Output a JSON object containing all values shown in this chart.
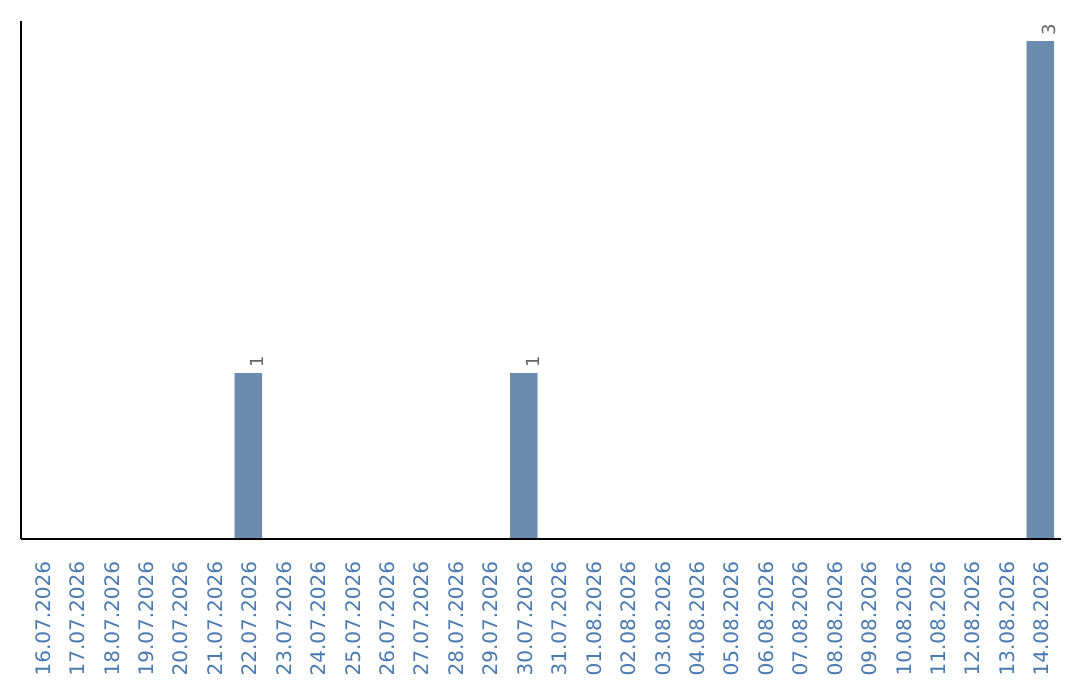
{
  "chart_data": {
    "type": "bar",
    "categories": [
      "16.07.2026",
      "17.07.2026",
      "18.07.2026",
      "19.07.2026",
      "20.07.2026",
      "21.07.2026",
      "22.07.2026",
      "23.07.2026",
      "24.07.2026",
      "25.07.2026",
      "26.07.2026",
      "27.07.2026",
      "28.07.2026",
      "29.07.2026",
      "30.07.2026",
      "31.07.2026",
      "01.08.2026",
      "02.08.2026",
      "03.08.2026",
      "04.08.2026",
      "05.08.2026",
      "06.08.2026",
      "07.08.2026",
      "08.08.2026",
      "09.08.2026",
      "10.08.2026",
      "11.08.2026",
      "12.08.2026",
      "13.08.2026",
      "14.08.2026"
    ],
    "values": [
      0,
      0,
      0,
      0,
      0,
      0,
      1,
      0,
      0,
      0,
      0,
      0,
      0,
      0,
      1,
      0,
      0,
      0,
      0,
      0,
      0,
      0,
      0,
      0,
      0,
      0,
      0,
      0,
      0,
      3
    ],
    "value_labels": [
      null,
      null,
      null,
      null,
      null,
      null,
      "1",
      null,
      null,
      null,
      null,
      null,
      null,
      null,
      "1",
      null,
      null,
      null,
      null,
      null,
      null,
      null,
      null,
      null,
      null,
      null,
      null,
      null,
      null,
      "3"
    ],
    "color": "#6b8cae",
    "grid": false,
    "tick_labels": "x"
  }
}
